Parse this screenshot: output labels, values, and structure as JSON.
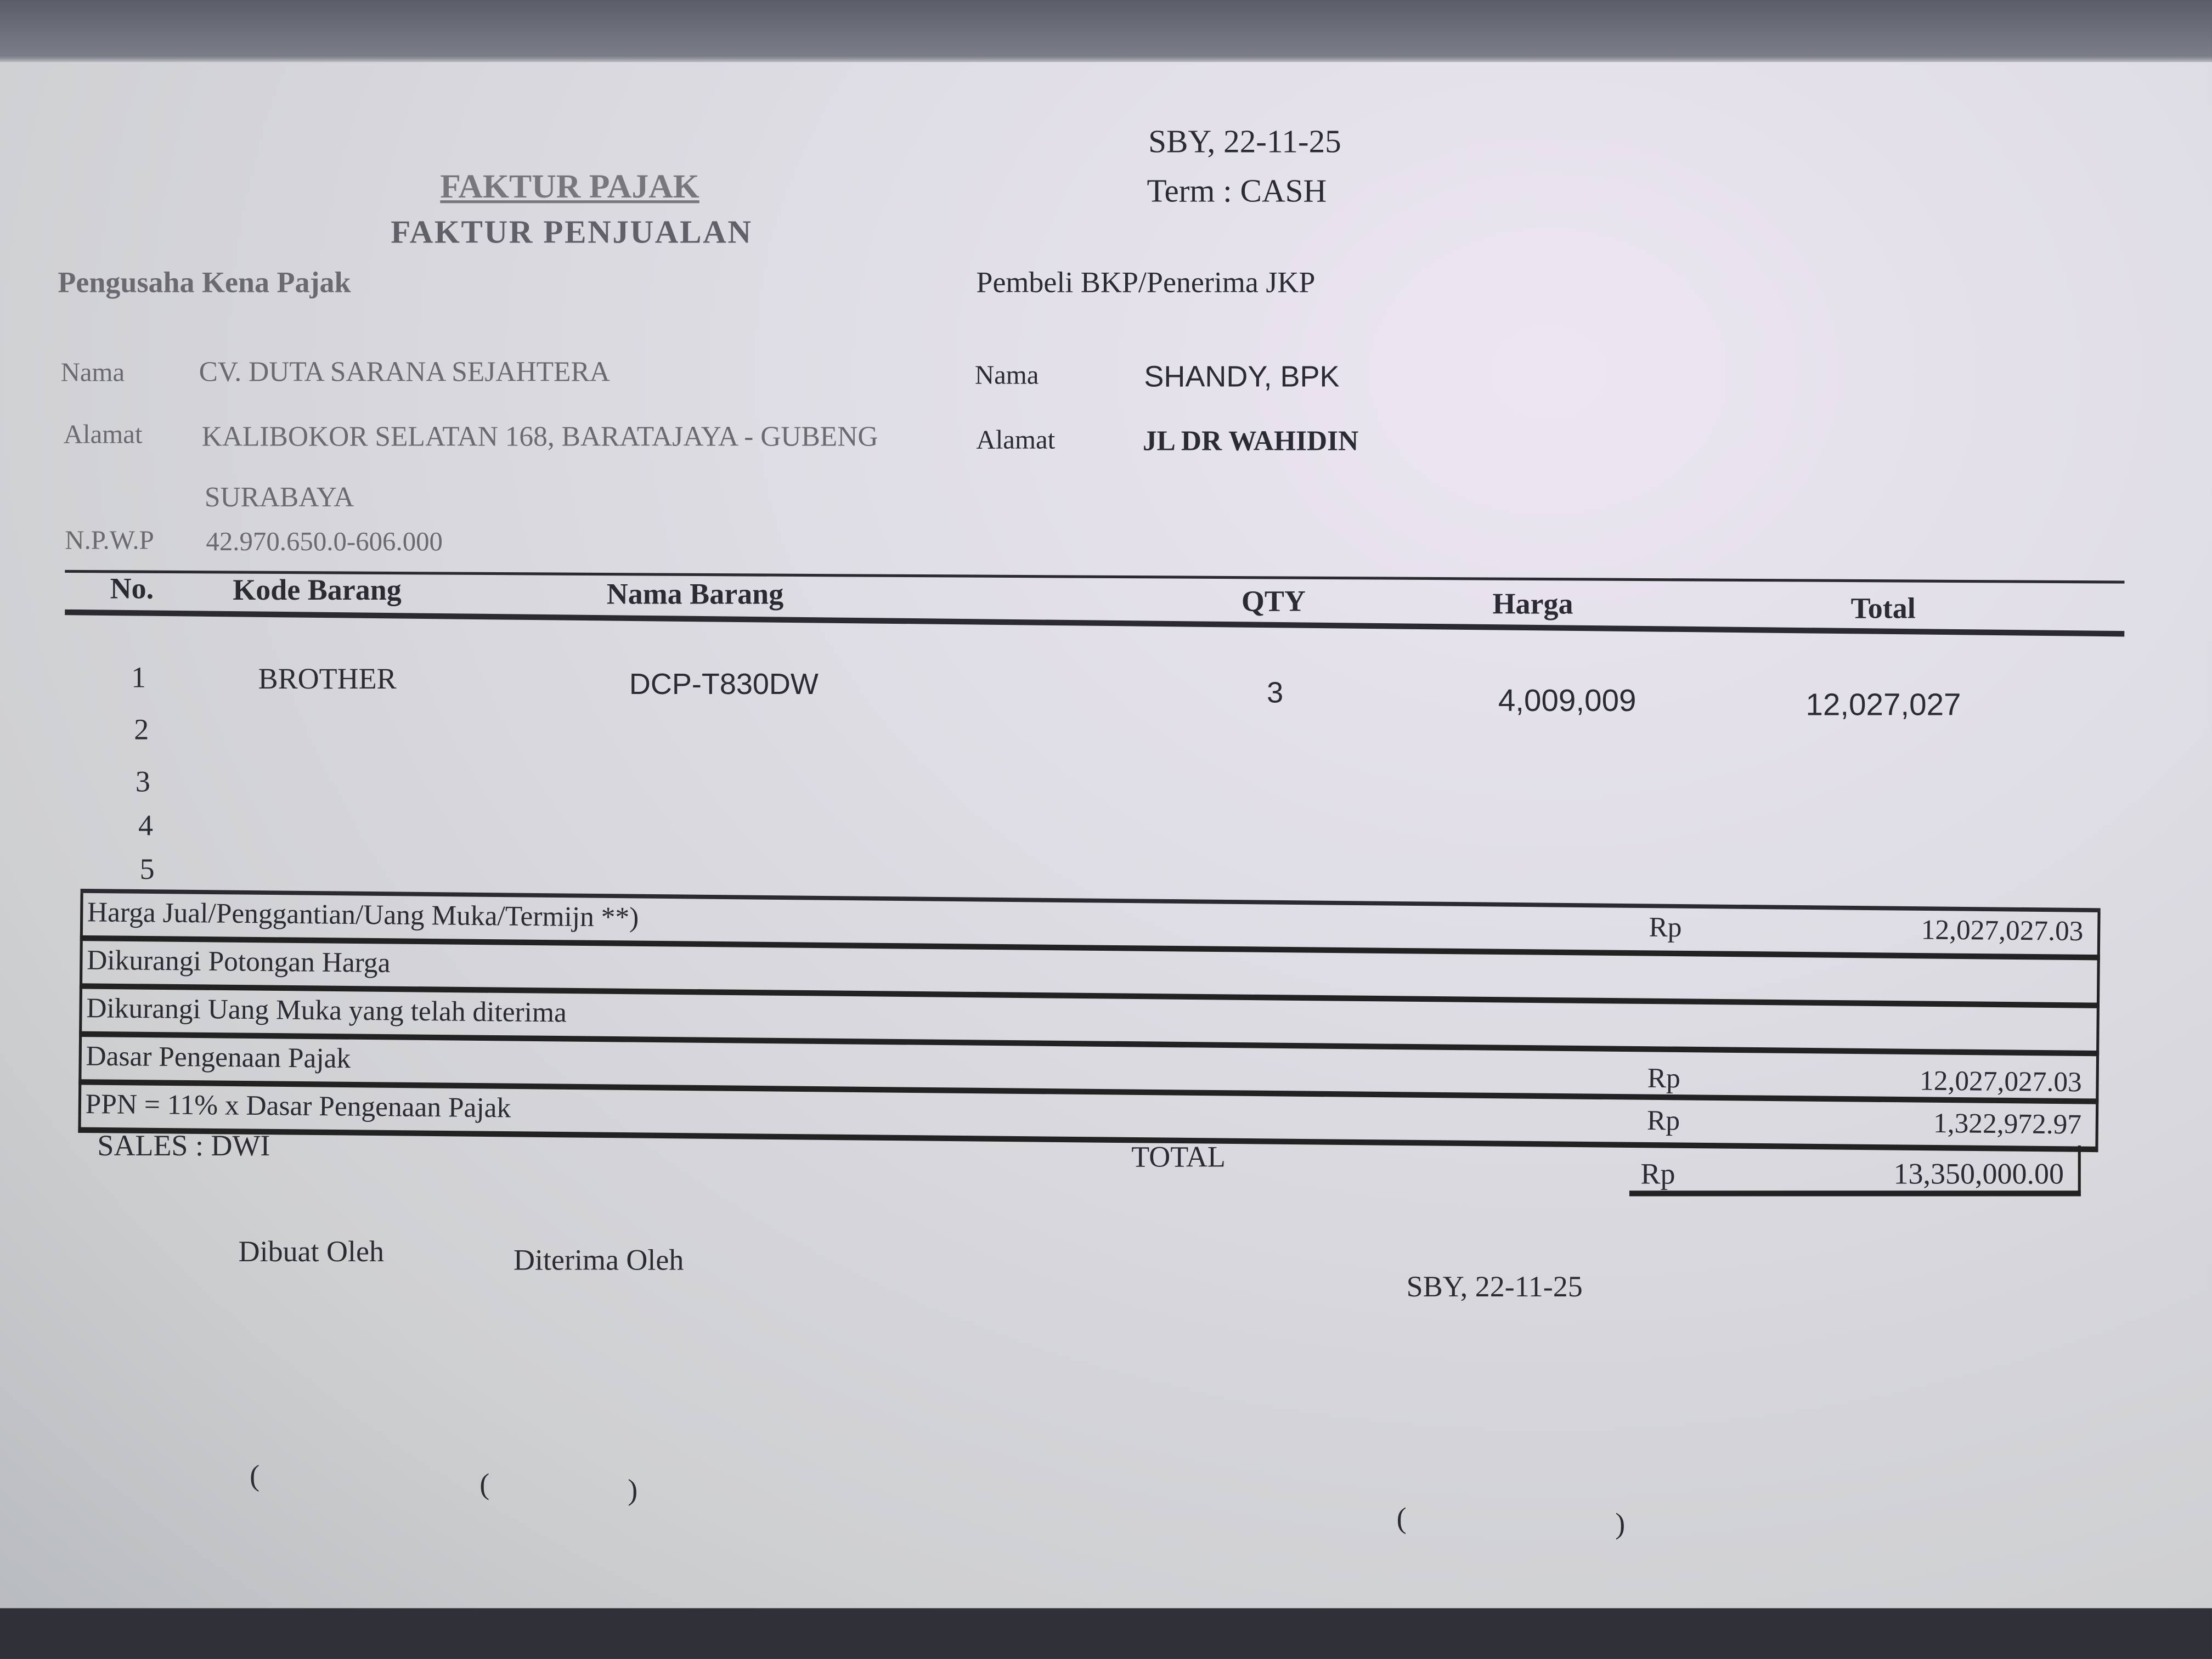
{
  "header": {
    "place_date": "SBY, 22-11-25",
    "term": "Term : CASH",
    "title": "FAKTUR PAJAK",
    "subtitle": "FAKTUR PENJUALAN"
  },
  "seller": {
    "section": "Pengusaha Kena Pajak",
    "name_label": "Nama",
    "name": "CV. DUTA SARANA SEJAHTERA",
    "address_label": "Alamat",
    "address_line1": "KALIBOKOR SELATAN 168, BARATAJAYA - GUBENG",
    "address_line2": "SURABAYA",
    "npwp_label": "N.P.W.P",
    "npwp": "42.970.650.0-606.000"
  },
  "buyer": {
    "section": "Pembeli BKP/Penerima JKP",
    "name_label": "Nama",
    "name": "SHANDY, BPK",
    "address_label": "Alamat",
    "address": "JL DR WAHIDIN"
  },
  "table": {
    "headers": [
      "No.",
      "Kode Barang",
      "Nama Barang",
      "QTY",
      "Harga",
      "Total"
    ],
    "rows": [
      {
        "no": "1",
        "code": "BROTHER",
        "name": "DCP-T830DW",
        "qty": "3",
        "price": "4,009,009",
        "total": "12,027,027"
      },
      {
        "no": "2"
      },
      {
        "no": "3"
      },
      {
        "no": "4"
      },
      {
        "no": "5"
      }
    ]
  },
  "summary": [
    {
      "label": "Harga Jual/Penggantian/Uang Muka/Termijn **)",
      "currency": "Rp",
      "amount": "12,027,027.03"
    },
    {
      "label": "Dikurangi Potongan Harga"
    },
    {
      "label": "Dikurangi Uang Muka yang telah diterima"
    },
    {
      "label": "Dasar Pengenaan Pajak",
      "currency": "Rp",
      "amount": "12,027,027.03"
    },
    {
      "label": "PPN = 11% x Dasar Pengenaan Pajak",
      "currency": "Rp",
      "amount": "1,322,972.97"
    }
  ],
  "sales": "SALES :  DWI",
  "total": {
    "label": "TOTAL",
    "currency": "Rp",
    "amount": "13,350,000.00"
  },
  "signatures": {
    "made_by": "Dibuat Oleh",
    "received_by": "Diterima Oleh",
    "place_date": "SBY,  22-11-25",
    "paren_open": "(",
    "paren_close": ")"
  }
}
